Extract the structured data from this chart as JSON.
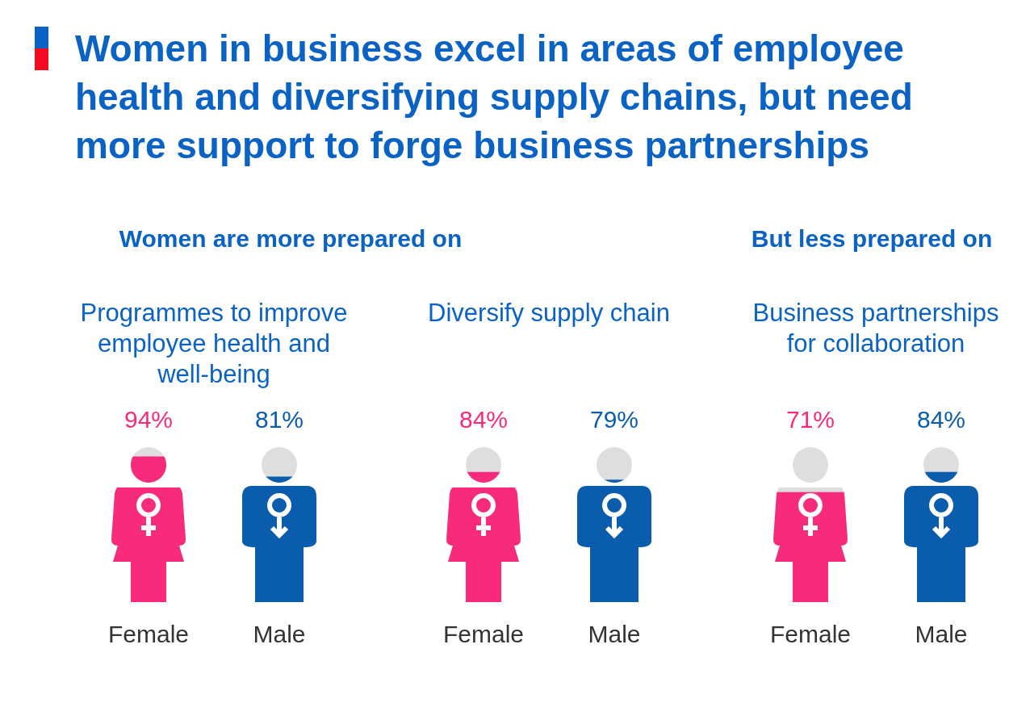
{
  "chart_data": [
    {
      "type": "other",
      "title": "Women in business excel in areas of employee health and diversifying supply chains, but need more support to forge business partnerships",
      "annotations": [
        "Women are more prepared on",
        "But less prepared on"
      ]
    },
    {
      "type": "bar",
      "title": "Programmes to improve employee health and well-being",
      "categories": [
        "Female",
        "Male"
      ],
      "values": [
        94,
        81
      ],
      "value_labels": [
        "94%",
        "81%"
      ],
      "colors": [
        "#f72a7c",
        "#0a5cad"
      ]
    },
    {
      "type": "bar",
      "title": "Diversify supply chain",
      "categories": [
        "Female",
        "Male"
      ],
      "values": [
        84,
        79
      ],
      "value_labels": [
        "84%",
        "79%"
      ],
      "colors": [
        "#f72a7c",
        "#0a5cad"
      ]
    },
    {
      "type": "bar",
      "title": "Business partnerships for collaboration",
      "categories": [
        "Female",
        "Male"
      ],
      "values": [
        71,
        84
      ],
      "value_labels": [
        "71%",
        "84%"
      ],
      "colors": [
        "#f72a7c",
        "#0a5cad"
      ]
    }
  ]
}
